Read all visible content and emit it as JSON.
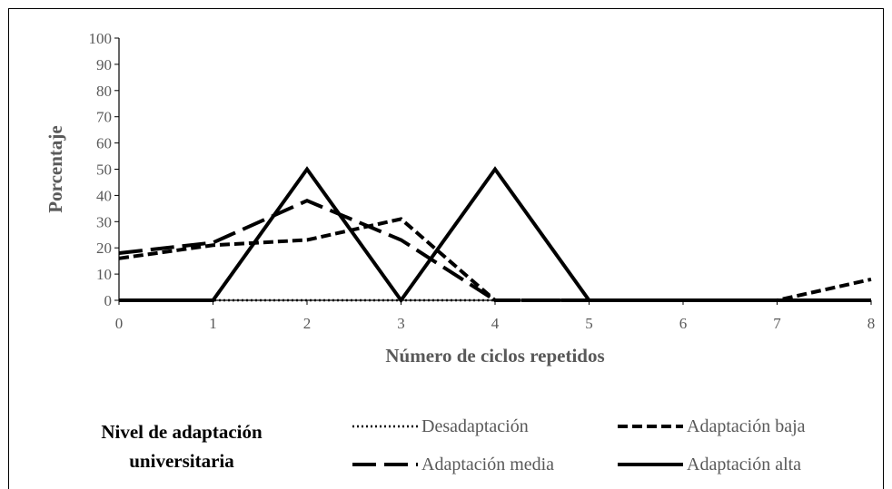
{
  "chart_data": {
    "type": "line",
    "title": "",
    "xlabel": "Número de ciclos repetidos",
    "ylabel": "Porcentaje",
    "x": [
      0,
      1,
      2,
      3,
      4,
      5,
      6,
      7,
      8
    ],
    "xlim": [
      0,
      8
    ],
    "ylim": [
      0,
      100
    ],
    "yticks": [
      0,
      10,
      20,
      30,
      40,
      50,
      60,
      70,
      80,
      90,
      100
    ],
    "grid": false,
    "legend_title": "Nivel de adaptación universitaria",
    "legend_title_lines": [
      "Nivel de adaptación",
      "universitaria"
    ],
    "legend_position": "bottom",
    "series": [
      {
        "name": "Desadaptación",
        "style": "dotted",
        "color": "#000000",
        "values": [
          0,
          0,
          0,
          0,
          0,
          0,
          0,
          0,
          0
        ]
      },
      {
        "name": "Adaptación baja",
        "style": "dashed",
        "color": "#000000",
        "values": [
          16,
          21,
          23,
          31,
          0,
          0,
          0,
          0,
          8
        ]
      },
      {
        "name": "Adaptación media",
        "style": "long-dash",
        "color": "#000000",
        "values": [
          18,
          22,
          38,
          23,
          0,
          0,
          0,
          0,
          0
        ]
      },
      {
        "name": "Adaptación alta",
        "style": "solid",
        "color": "#000000",
        "values": [
          0,
          0,
          50,
          0,
          50,
          0,
          0,
          0,
          0
        ]
      }
    ]
  }
}
